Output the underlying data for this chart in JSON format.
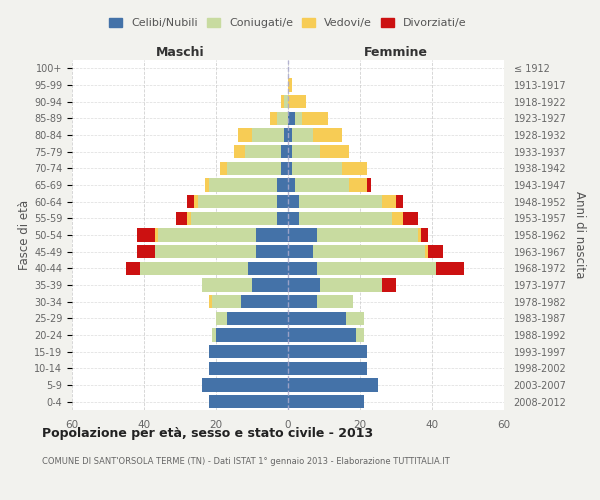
{
  "age_groups": [
    "0-4",
    "5-9",
    "10-14",
    "15-19",
    "20-24",
    "25-29",
    "30-34",
    "35-39",
    "40-44",
    "45-49",
    "50-54",
    "55-59",
    "60-64",
    "65-69",
    "70-74",
    "75-79",
    "80-84",
    "85-89",
    "90-94",
    "95-99",
    "100+"
  ],
  "birth_years": [
    "2008-2012",
    "2003-2007",
    "1998-2002",
    "1993-1997",
    "1988-1992",
    "1983-1987",
    "1978-1982",
    "1973-1977",
    "1968-1972",
    "1963-1967",
    "1958-1962",
    "1953-1957",
    "1948-1952",
    "1943-1947",
    "1938-1942",
    "1933-1937",
    "1928-1932",
    "1923-1927",
    "1918-1922",
    "1913-1917",
    "≤ 1912"
  ],
  "colors": {
    "celibi": "#4472a8",
    "coniugati": "#c8dba0",
    "vedovi": "#f7cc55",
    "divorziati": "#cc1111"
  },
  "maschi": {
    "celibi": [
      22,
      24,
      22,
      22,
      20,
      17,
      13,
      10,
      11,
      9,
      9,
      3,
      3,
      3,
      2,
      2,
      1,
      0,
      0,
      0,
      0
    ],
    "coniugati": [
      0,
      0,
      0,
      0,
      1,
      3,
      8,
      14,
      30,
      28,
      27,
      24,
      22,
      19,
      15,
      10,
      9,
      3,
      1,
      0,
      0
    ],
    "vedovi": [
      0,
      0,
      0,
      0,
      0,
      0,
      1,
      0,
      0,
      0,
      1,
      1,
      1,
      1,
      2,
      3,
      4,
      2,
      1,
      0,
      0
    ],
    "divorziati": [
      0,
      0,
      0,
      0,
      0,
      0,
      0,
      0,
      4,
      5,
      5,
      3,
      2,
      0,
      0,
      0,
      0,
      0,
      0,
      0,
      0
    ]
  },
  "femmine": {
    "nubili": [
      21,
      25,
      22,
      22,
      19,
      16,
      8,
      9,
      8,
      7,
      8,
      3,
      3,
      2,
      1,
      1,
      1,
      2,
      0,
      0,
      0
    ],
    "coniugate": [
      0,
      0,
      0,
      0,
      2,
      5,
      10,
      17,
      33,
      31,
      28,
      26,
      23,
      15,
      14,
      8,
      6,
      2,
      0,
      0,
      0
    ],
    "vedove": [
      0,
      0,
      0,
      0,
      0,
      0,
      0,
      0,
      0,
      1,
      1,
      3,
      4,
      5,
      7,
      8,
      8,
      7,
      5,
      1,
      0
    ],
    "divorziate": [
      0,
      0,
      0,
      0,
      0,
      0,
      0,
      4,
      8,
      4,
      2,
      4,
      2,
      1,
      0,
      0,
      0,
      0,
      0,
      0,
      0
    ]
  },
  "xlim": 60,
  "title": "Popolazione per età, sesso e stato civile - 2013",
  "subtitle": "COMUNE DI SANT'ORSOLA TERME (TN) - Dati ISTAT 1° gennaio 2013 - Elaborazione TUTTITALIA.IT",
  "ylabel_left": "Fasce di età",
  "ylabel_right": "Anni di nascita",
  "xlabel_left": "Maschi",
  "xlabel_right": "Femmine",
  "legend_labels": [
    "Celibi/Nubili",
    "Coniugati/e",
    "Vedovi/e",
    "Divorziati/e"
  ],
  "bg_color": "#f2f2ee",
  "plot_bg": "#ffffff",
  "grid_color": "#cccccc"
}
